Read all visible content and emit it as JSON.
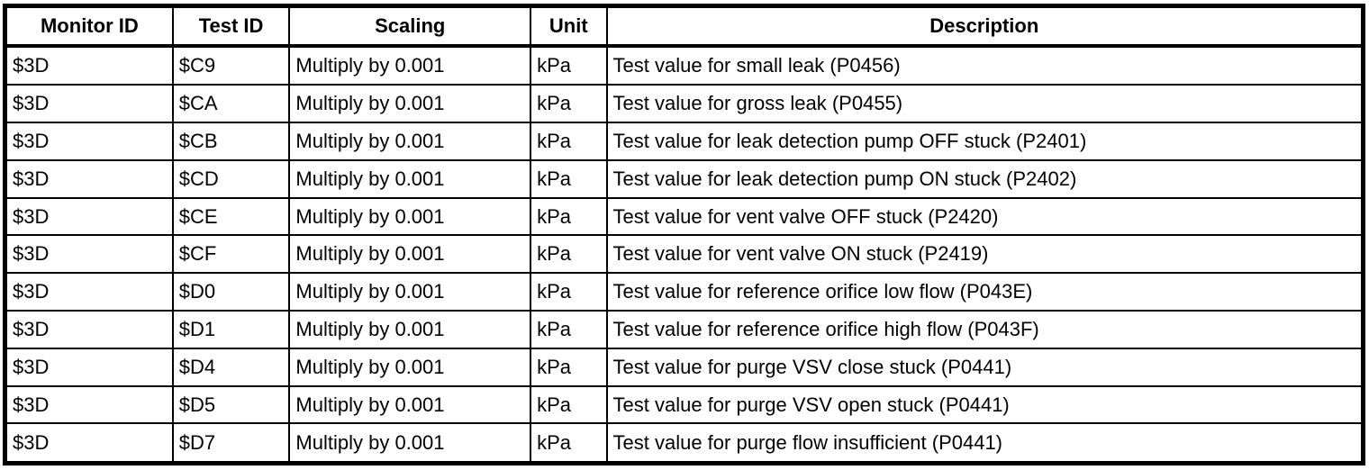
{
  "table": {
    "columns": [
      "Monitor ID",
      "Test ID",
      "Scaling",
      "Unit",
      "Description"
    ],
    "rows": [
      {
        "monitor_id": "$3D",
        "test_id": "$C9",
        "scaling": "Multiply by 0.001",
        "unit": "kPa",
        "description": "Test value for small leak (P0456)"
      },
      {
        "monitor_id": "$3D",
        "test_id": "$CA",
        "scaling": "Multiply by 0.001",
        "unit": "kPa",
        "description": "Test value for gross leak (P0455)"
      },
      {
        "monitor_id": "$3D",
        "test_id": "$CB",
        "scaling": "Multiply by 0.001",
        "unit": "kPa",
        "description": "Test value for leak detection pump OFF stuck (P2401)"
      },
      {
        "monitor_id": "$3D",
        "test_id": "$CD",
        "scaling": "Multiply by 0.001",
        "unit": "kPa",
        "description": "Test value for leak detection pump ON stuck (P2402)"
      },
      {
        "monitor_id": "$3D",
        "test_id": "$CE",
        "scaling": "Multiply by 0.001",
        "unit": "kPa",
        "description": "Test value for vent valve OFF stuck (P2420)"
      },
      {
        "monitor_id": "$3D",
        "test_id": "$CF",
        "scaling": "Multiply by 0.001",
        "unit": "kPa",
        "description": "Test value for vent valve ON stuck (P2419)"
      },
      {
        "monitor_id": "$3D",
        "test_id": "$D0",
        "scaling": "Multiply by 0.001",
        "unit": "kPa",
        "description": "Test value for reference orifice low flow (P043E)"
      },
      {
        "monitor_id": "$3D",
        "test_id": "$D1",
        "scaling": "Multiply by 0.001",
        "unit": "kPa",
        "description": "Test value for reference orifice high flow (P043F)"
      },
      {
        "monitor_id": "$3D",
        "test_id": "$D4",
        "scaling": "Multiply by 0.001",
        "unit": "kPa",
        "description": "Test value for purge VSV close stuck (P0441)"
      },
      {
        "monitor_id": "$3D",
        "test_id": "$D5",
        "scaling": "Multiply by 0.001",
        "unit": "kPa",
        "description": "Test value for purge VSV open stuck (P0441)"
      },
      {
        "monitor_id": "$3D",
        "test_id": "$D7",
        "scaling": "Multiply by 0.001",
        "unit": "kPa",
        "description": "Test value for purge flow insufficient (P0441)"
      }
    ],
    "text_color": "#000000",
    "border_color": "#000000",
    "background_color": "#ffffff"
  }
}
